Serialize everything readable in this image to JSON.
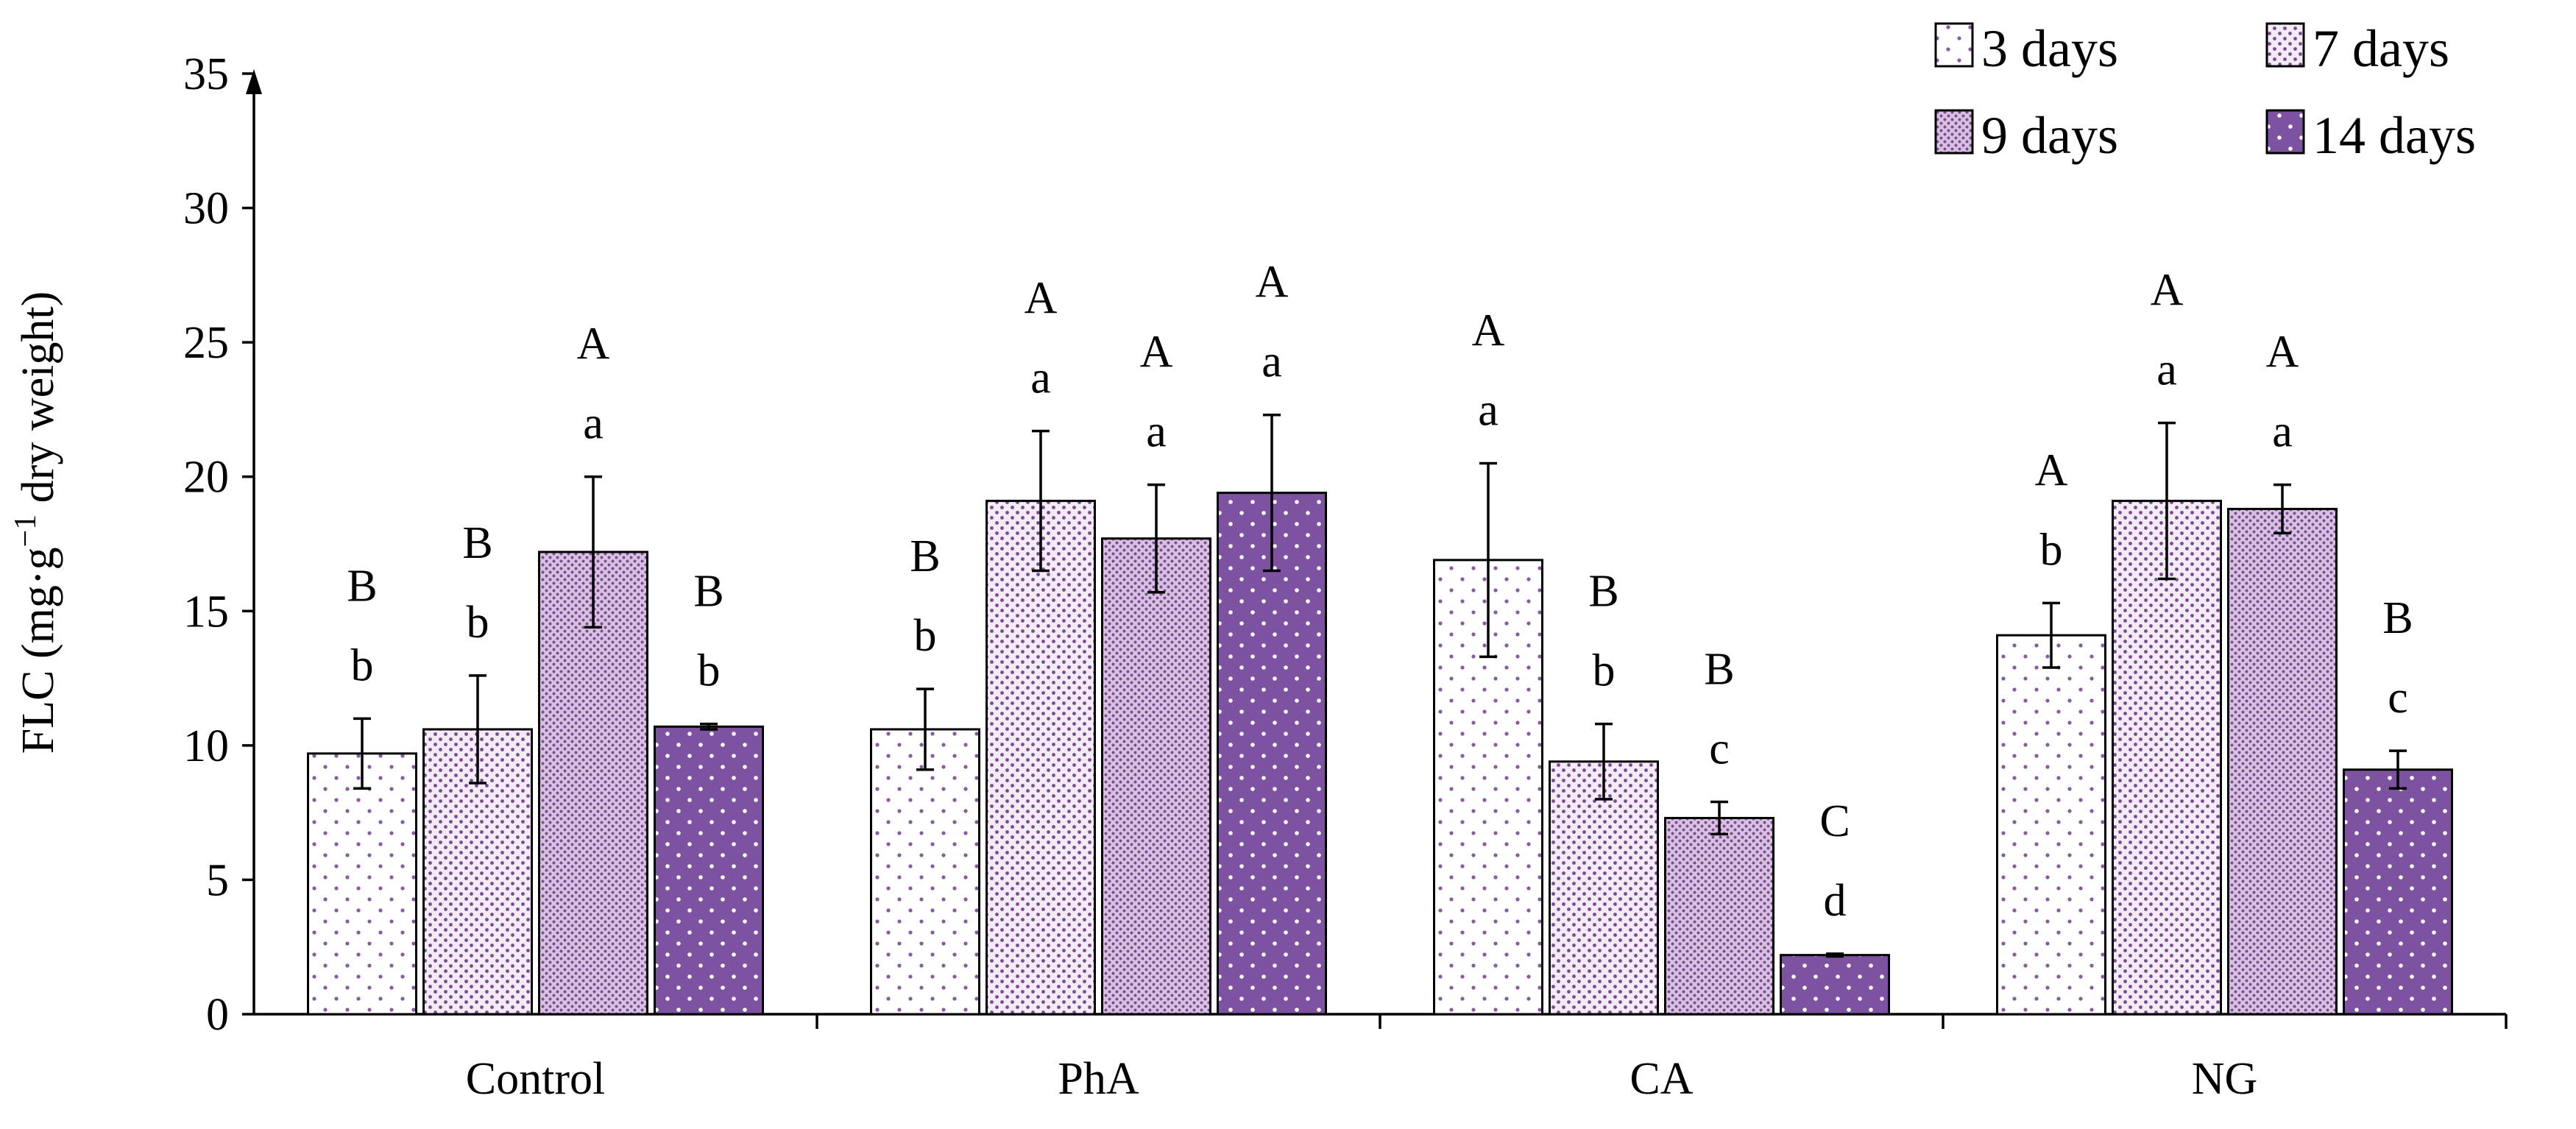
{
  "chart_data": {
    "type": "bar",
    "title": "",
    "xlabel": "",
    "ylabel": "FLC (mg·g⁻¹ dry weight)",
    "ylabel_parts": {
      "pre": "FLC (mg·g",
      "sup": "−1",
      "post": " dry weight)"
    },
    "ylim": [
      0,
      35
    ],
    "yticks": [
      0,
      5,
      10,
      15,
      20,
      25,
      30,
      35
    ],
    "categories": [
      "Control",
      "PhA",
      "CA",
      "NG"
    ],
    "series": [
      {
        "name": "3 days",
        "color": "#ffffff",
        "dot": "#8a5aa0",
        "pattern": "sparse-dots",
        "values": [
          9.7,
          10.6,
          16.9,
          14.1
        ],
        "errors": [
          1.3,
          1.5,
          3.6,
          1.2
        ],
        "upper_labels": [
          "B",
          "B",
          "A",
          "A"
        ],
        "lower_labels": [
          "b",
          "b",
          "a",
          "b"
        ]
      },
      {
        "name": "7 days",
        "color": "#f3ebf6",
        "dot": "#7a4a90",
        "pattern": "dense-dots",
        "values": [
          10.6,
          19.1,
          9.4,
          19.1
        ],
        "errors": [
          2.0,
          2.6,
          1.4,
          2.9
        ],
        "upper_labels": [
          "B",
          "A",
          "B",
          "A"
        ],
        "lower_labels": [
          "b",
          "a",
          "b",
          "a"
        ]
      },
      {
        "name": "9 days",
        "color": "#d9c2e1",
        "dot": "#7b4e92",
        "pattern": "fine-dots",
        "values": [
          17.2,
          17.7,
          7.3,
          18.8
        ],
        "errors": [
          2.8,
          2.0,
          0.6,
          0.9
        ],
        "upper_labels": [
          "A",
          "A",
          "B",
          "A"
        ],
        "lower_labels": [
          "a",
          "a",
          "c",
          "a"
        ]
      },
      {
        "name": "14 days",
        "color": "#7d52a0",
        "dot": "#ffffff",
        "pattern": "white-dots",
        "values": [
          10.7,
          19.4,
          2.2,
          9.1
        ],
        "errors": [
          0.1,
          2.9,
          0.05,
          0.7
        ],
        "upper_labels": [
          "B",
          "A",
          "C",
          "B"
        ],
        "lower_labels": [
          "b",
          "a",
          "d",
          "c"
        ]
      }
    ],
    "legend_position": "top-right",
    "grid": false
  }
}
